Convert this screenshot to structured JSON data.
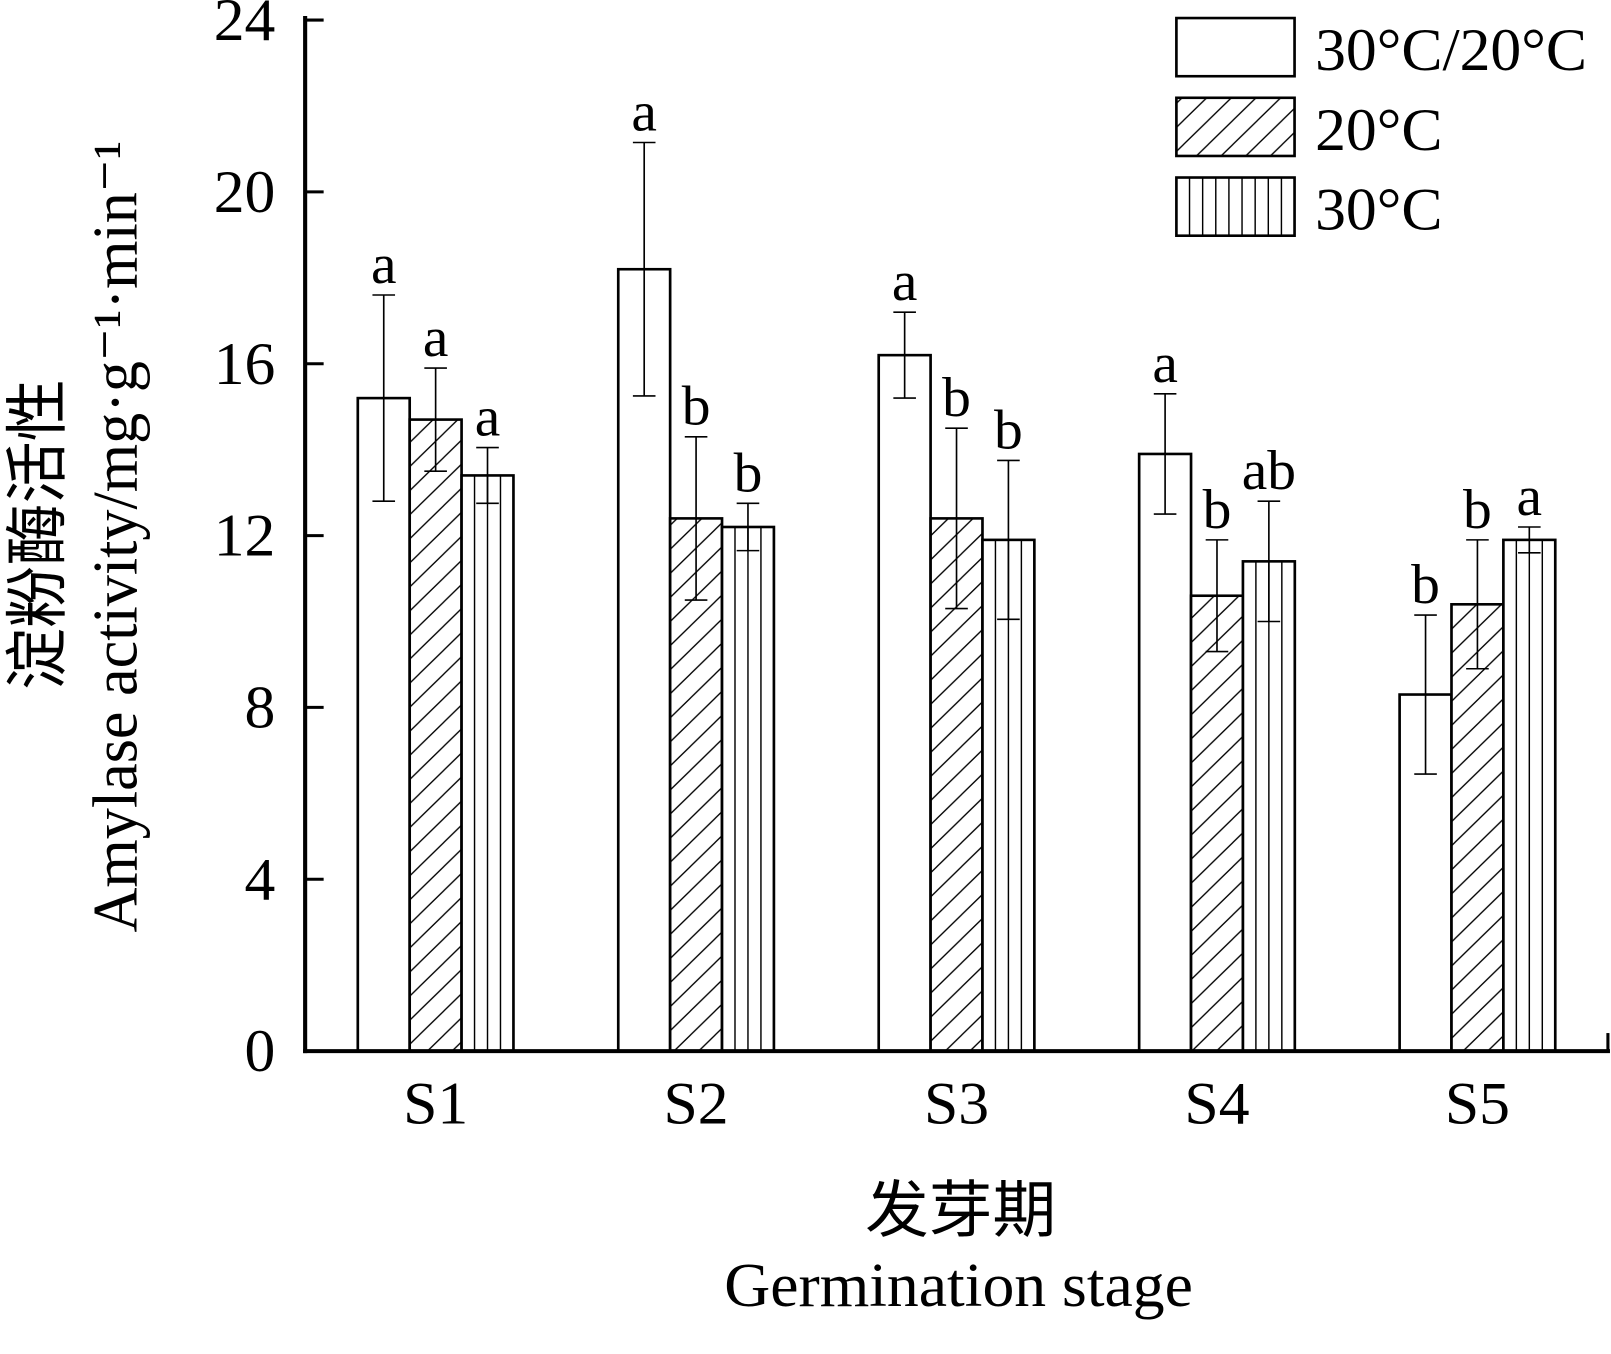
{
  "chart_data": {
    "type": "bar",
    "categories": [
      "S1",
      "S2",
      "S3",
      "S4",
      "S5"
    ],
    "series": [
      {
        "name": "30°C/20°C",
        "values": [
          15.2,
          18.2,
          16.2,
          13.9,
          8.3
        ],
        "error": [
          2.4,
          2.95,
          1.0,
          1.4,
          1.85
        ],
        "letters": [
          "a",
          "a",
          "a",
          "a",
          "b"
        ]
      },
      {
        "name": "20°C",
        "values": [
          14.7,
          12.4,
          12.4,
          10.6,
          10.4
        ],
        "error": [
          1.2,
          1.9,
          2.1,
          1.3,
          1.5
        ],
        "letters": [
          "a",
          "b",
          "b",
          "b",
          "b"
        ]
      },
      {
        "name": "30°C",
        "values": [
          13.4,
          12.2,
          11.9,
          11.4,
          11.9
        ],
        "error": [
          0.65,
          0.55,
          1.85,
          1.4,
          0.3
        ],
        "letters": [
          "a",
          "b",
          "b",
          "ab",
          "a"
        ]
      }
    ],
    "xlabel": [
      "发芽期",
      "Germination stage"
    ],
    "ylabel": [
      "淀粉酶活性",
      "Amylase activity/mg·g⁻¹·min⁻¹"
    ],
    "ylim": [
      0,
      24
    ],
    "yticks": [
      0,
      4,
      8,
      12,
      16,
      20,
      24
    ],
    "legend": "top-right",
    "grid": false,
    "colors": {
      "bar_fill": "#ffffff",
      "ink": "#000000"
    }
  }
}
